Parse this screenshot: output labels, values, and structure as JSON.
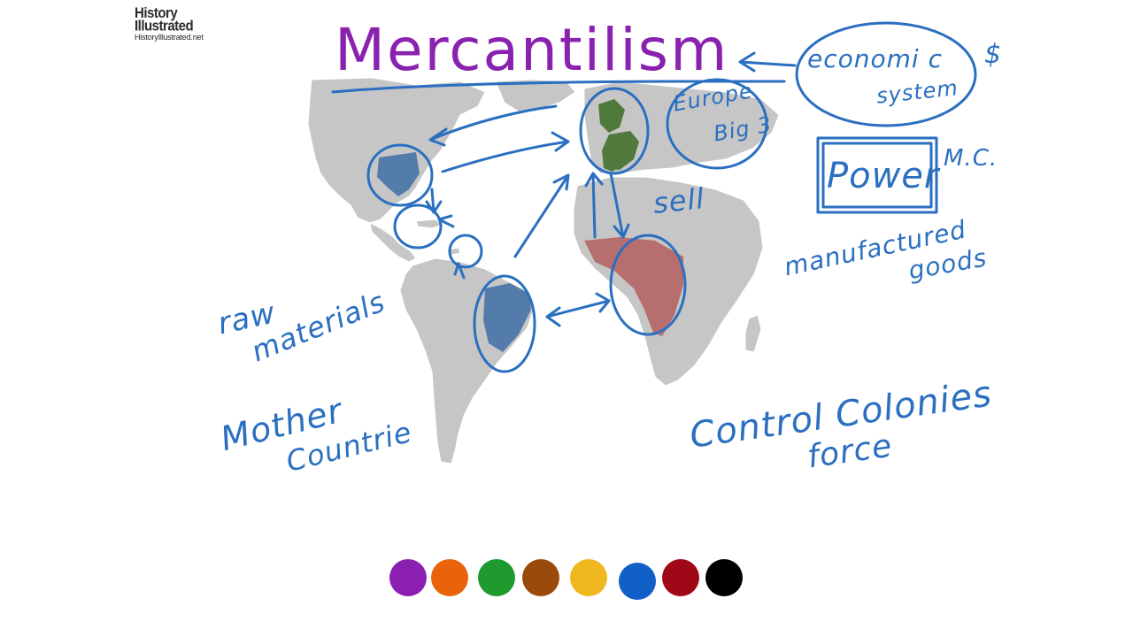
{
  "logo": {
    "line1": "History",
    "line2": "Illustrated",
    "url": "HistoryIllustrated.net"
  },
  "title": "Mercantilism",
  "annotations": {
    "economic": "economi c",
    "system": "system",
    "dollar": "$",
    "europe": "Europe",
    "big3": "Big 3",
    "power": "Power",
    "mc": "M.C.",
    "sell": "sell",
    "manufactured": "manufactured",
    "goods": "goods",
    "raw": "raw",
    "materials": "materials",
    "mother": "Mother",
    "countrie": "Countrie",
    "control": "Control Colonies",
    "force": "force"
  },
  "palette": [
    {
      "name": "purple",
      "color": "#8a1fb0"
    },
    {
      "name": "orange",
      "color": "#e8630a"
    },
    {
      "name": "green",
      "color": "#1e9a2e"
    },
    {
      "name": "brown",
      "color": "#9a4a0a"
    },
    {
      "name": "yellow",
      "color": "#f0b820"
    },
    {
      "name": "blue",
      "color": "#1060c8"
    },
    {
      "name": "red",
      "color": "#a00818"
    },
    {
      "name": "black",
      "color": "#000000"
    }
  ],
  "colors": {
    "ink_blue": "#2a6fc0",
    "title_purple": "#8a22b0",
    "map_gray": "#c6c6c6"
  }
}
